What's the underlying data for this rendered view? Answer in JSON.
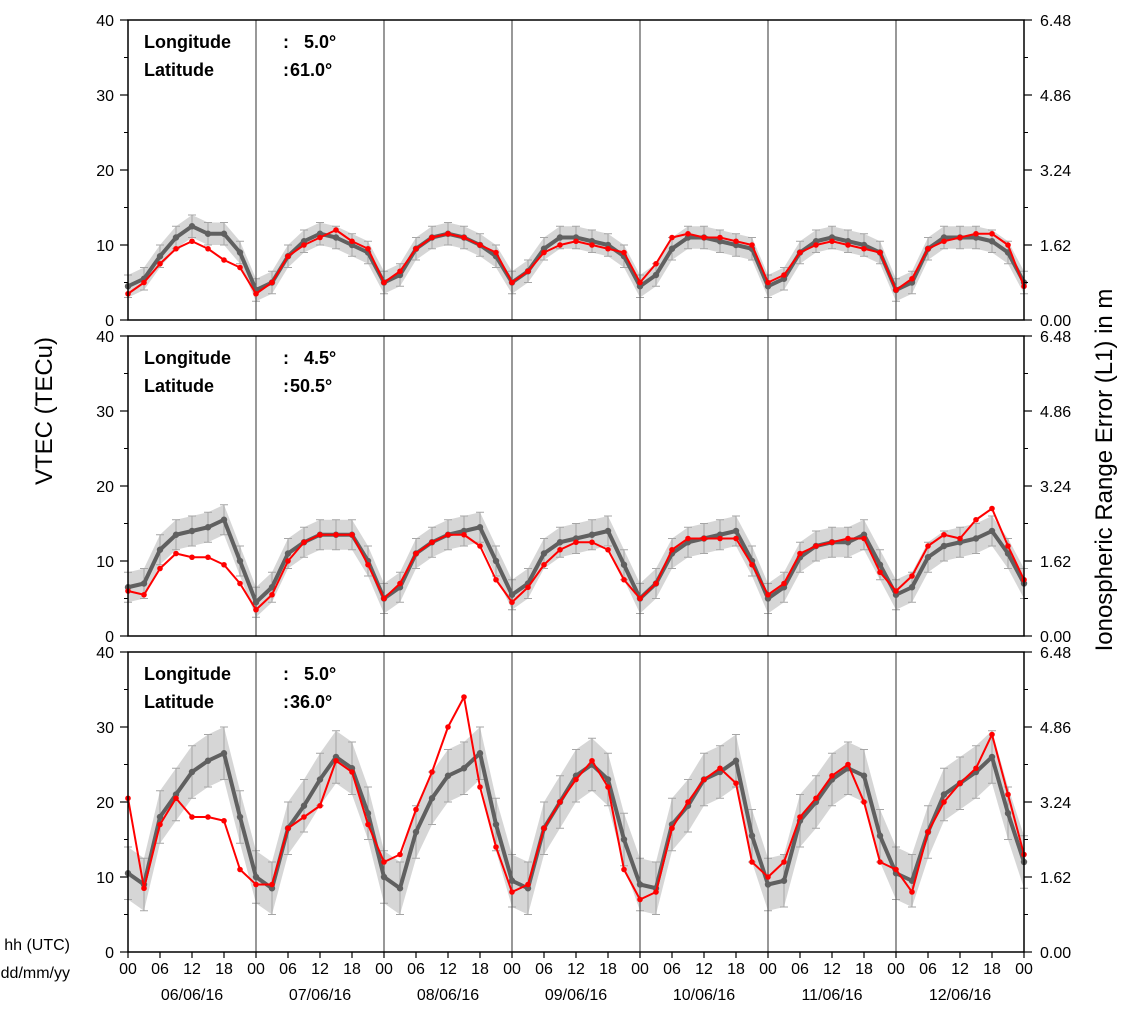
{
  "figure": {
    "ylabel_left": "VTEC (TECu)",
    "ylabel_right": "Ionospheric Range Error (L1) in m",
    "x_row_label_hours": "hh (UTC)",
    "x_row_label_dates": "dd/mm/yy",
    "hour_ticks": [
      "00",
      "06",
      "12",
      "18",
      "00",
      "06",
      "12",
      "18",
      "00",
      "06",
      "12",
      "18",
      "00",
      "06",
      "12",
      "18",
      "00",
      "06",
      "12",
      "18",
      "00",
      "06",
      "12",
      "18",
      "00",
      "06",
      "12",
      "18",
      "00"
    ],
    "date_labels": [
      "06/06/16",
      "07/06/16",
      "08/06/16",
      "09/06/16",
      "10/06/16",
      "11/06/16",
      "12/06/16"
    ]
  },
  "colors": {
    "reference": "#606060",
    "observed": "#ff0000",
    "band": "#cccccc",
    "errorbar": "#a6a6a6",
    "grid": "#555555"
  },
  "chart_data": [
    {
      "type": "line",
      "panel": "top",
      "annotation": {
        "lon_label": "Longitude",
        "lon_value": "5.0°",
        "lat_label": "Latitude",
        "lat_value": "61.0°"
      },
      "x_unit": "hours since 06/06/16 00 UTC",
      "xlim": [
        0,
        168
      ],
      "ylim": [
        0,
        40
      ],
      "y_ticks": [
        0,
        10,
        20,
        30,
        40
      ],
      "y2_ticks": [
        "0.00",
        "1.62",
        "3.24",
        "4.86",
        "6.48"
      ],
      "band_halfwidth": 1.5,
      "series": [
        {
          "x": [
            0,
            3,
            6,
            9,
            12,
            15,
            18,
            21,
            24,
            27,
            30,
            33,
            36,
            39,
            42,
            45,
            48,
            51,
            54,
            57,
            60,
            63,
            66,
            69,
            72,
            75,
            78,
            81,
            84,
            87,
            90,
            93,
            96,
            99,
            102,
            105,
            108,
            111,
            114,
            117,
            120,
            123,
            126,
            129,
            132,
            135,
            138,
            141,
            144,
            147,
            150,
            153,
            156,
            159,
            162,
            165,
            168
          ],
          "y": [
            4.5,
            5.5,
            8.5,
            11,
            12.5,
            11.5,
            11.5,
            9,
            4,
            5,
            8.5,
            10.5,
            11.5,
            11,
            10,
            9,
            5,
            6,
            9.5,
            11,
            11.5,
            11,
            10,
            8.5,
            5,
            6.5,
            9.5,
            11,
            11,
            10.5,
            10,
            8.5,
            4.5,
            6,
            9.5,
            11,
            11,
            10.5,
            10,
            9.5,
            4.5,
            5.5,
            9,
            10.5,
            11,
            10.5,
            10,
            9,
            4,
            5,
            9.5,
            11,
            11,
            11,
            10.5,
            9,
            5
          ]
        },
        {
          "x": [
            0,
            3,
            6,
            9,
            12,
            15,
            18,
            21,
            24,
            27,
            30,
            33,
            36,
            39,
            42,
            45,
            48,
            51,
            54,
            57,
            60,
            63,
            66,
            69,
            72,
            75,
            78,
            81,
            84,
            87,
            90,
            93,
            96,
            99,
            102,
            105,
            108,
            111,
            114,
            117,
            120,
            123,
            126,
            129,
            132,
            135,
            138,
            141,
            144,
            147,
            150,
            153,
            156,
            159,
            162,
            165,
            168
          ],
          "y": [
            3.5,
            5,
            7.5,
            9.5,
            10.5,
            9.5,
            8,
            7,
            3.5,
            5,
            8.5,
            10,
            11,
            12,
            10.5,
            9.5,
            5,
            6.5,
            9.5,
            11,
            11.5,
            11,
            10,
            9,
            5,
            6.5,
            9,
            10,
            10.5,
            10,
            9.5,
            9,
            5,
            7.5,
            11,
            11.5,
            11,
            11,
            10.5,
            10,
            5,
            6,
            9,
            10,
            10.5,
            10,
            9.5,
            9,
            4,
            5.5,
            9.5,
            10.5,
            11,
            11.5,
            11.5,
            10,
            4.5
          ]
        }
      ]
    },
    {
      "type": "line",
      "panel": "middle",
      "annotation": {
        "lon_label": "Longitude",
        "lon_value": "4.5°",
        "lat_label": "Latitude",
        "lat_value": "50.5°"
      },
      "x_unit": "hours since 06/06/16 00 UTC",
      "xlim": [
        0,
        168
      ],
      "ylim": [
        0,
        40
      ],
      "y_ticks": [
        0,
        10,
        20,
        30,
        40
      ],
      "y2_ticks": [
        "0.00",
        "1.62",
        "3.24",
        "4.86",
        "6.48"
      ],
      "band_halfwidth": 2,
      "series": [
        {
          "x": [
            0,
            3,
            6,
            9,
            12,
            15,
            18,
            21,
            24,
            27,
            30,
            33,
            36,
            39,
            42,
            45,
            48,
            51,
            54,
            57,
            60,
            63,
            66,
            69,
            72,
            75,
            78,
            81,
            84,
            87,
            90,
            93,
            96,
            99,
            102,
            105,
            108,
            111,
            114,
            117,
            120,
            123,
            126,
            129,
            132,
            135,
            138,
            141,
            144,
            147,
            150,
            153,
            156,
            159,
            162,
            165,
            168
          ],
          "y": [
            6.5,
            7,
            11.5,
            13.5,
            14,
            14.5,
            15.5,
            10,
            4.5,
            6.5,
            11,
            12.5,
            13.5,
            13.5,
            13.5,
            10,
            5,
            6.5,
            11,
            12.5,
            13.5,
            14,
            14.5,
            10,
            5.5,
            7,
            11,
            12.5,
            13,
            13.5,
            14,
            9.5,
            5,
            7,
            11,
            12.5,
            13,
            13.5,
            14,
            10,
            5,
            6.5,
            10.5,
            12,
            12.5,
            12.5,
            13.5,
            9.5,
            5.5,
            6.5,
            10.5,
            12,
            12.5,
            13,
            14,
            11,
            7
          ]
        },
        {
          "x": [
            0,
            3,
            6,
            9,
            12,
            15,
            18,
            21,
            24,
            27,
            30,
            33,
            36,
            39,
            42,
            45,
            48,
            51,
            54,
            57,
            60,
            63,
            66,
            69,
            72,
            75,
            78,
            81,
            84,
            87,
            90,
            93,
            96,
            99,
            102,
            105,
            108,
            111,
            114,
            117,
            120,
            123,
            126,
            129,
            132,
            135,
            138,
            141,
            144,
            147,
            150,
            153,
            156,
            159,
            162,
            165,
            168
          ],
          "y": [
            6,
            5.5,
            9,
            11,
            10.5,
            10.5,
            9.5,
            7,
            3.5,
            5.5,
            10,
            12.5,
            13.5,
            13.5,
            13.5,
            9.5,
            5,
            7,
            11,
            12.5,
            13.5,
            13.5,
            12,
            7.5,
            4.5,
            6.5,
            9.5,
            11.5,
            12.5,
            12.5,
            11.5,
            7.5,
            5,
            7,
            11.5,
            13,
            13,
            13,
            13,
            9.5,
            5.5,
            7,
            11,
            12,
            12.5,
            13,
            13,
            8.5,
            6,
            8,
            12,
            13.5,
            13,
            15.5,
            17,
            12,
            7.5
          ]
        }
      ]
    },
    {
      "type": "line",
      "panel": "bottom",
      "annotation": {
        "lon_label": "Longitude",
        "lon_value": "5.0°",
        "lat_label": "Latitude",
        "lat_value": "36.0°"
      },
      "x_unit": "hours since 06/06/16 00 UTC",
      "xlim": [
        0,
        168
      ],
      "ylim": [
        0,
        40
      ],
      "y_ticks": [
        0,
        10,
        20,
        30,
        40
      ],
      "y2_ticks": [
        "0.00",
        "1.62",
        "3.24",
        "4.86",
        "6.48"
      ],
      "band_halfwidth": 3.5,
      "series": [
        {
          "x": [
            0,
            3,
            6,
            9,
            12,
            15,
            18,
            21,
            24,
            27,
            30,
            33,
            36,
            39,
            42,
            45,
            48,
            51,
            54,
            57,
            60,
            63,
            66,
            69,
            72,
            75,
            78,
            81,
            84,
            87,
            90,
            93,
            96,
            99,
            102,
            105,
            108,
            111,
            114,
            117,
            120,
            123,
            126,
            129,
            132,
            135,
            138,
            141,
            144,
            147,
            150,
            153,
            156,
            159,
            162,
            165,
            168
          ],
          "y": [
            10.5,
            9,
            18,
            21,
            24,
            25.5,
            26.5,
            18,
            10,
            8.5,
            16.5,
            19.5,
            23,
            26,
            24.5,
            18.5,
            10,
            8.5,
            16,
            20.5,
            23.5,
            24.5,
            26.5,
            17,
            9.5,
            8.5,
            16.5,
            20,
            23.5,
            25,
            23,
            15,
            9,
            8.5,
            17,
            19.5,
            23,
            24,
            25.5,
            15.5,
            9,
            9.5,
            17.5,
            20,
            23,
            24.5,
            23.5,
            15.5,
            10.5,
            9.5,
            16,
            21,
            22.5,
            24,
            26,
            18.5,
            12
          ]
        },
        {
          "x": [
            0,
            3,
            6,
            9,
            12,
            15,
            18,
            21,
            24,
            27,
            30,
            33,
            36,
            39,
            42,
            45,
            48,
            51,
            54,
            57,
            60,
            63,
            66,
            69,
            72,
            75,
            78,
            81,
            84,
            87,
            90,
            93,
            96,
            99,
            102,
            105,
            108,
            111,
            114,
            117,
            120,
            123,
            126,
            129,
            132,
            135,
            138,
            141,
            144,
            147,
            150,
            153,
            156,
            159,
            162,
            165,
            168
          ],
          "y": [
            20.5,
            8.5,
            17,
            20.5,
            18,
            18,
            17.5,
            11,
            9,
            9,
            16.5,
            18,
            19.5,
            25.5,
            24,
            17,
            12,
            13,
            19,
            24,
            30,
            34,
            22,
            14,
            8,
            9,
            16.5,
            20,
            23,
            25.5,
            22,
            11,
            7,
            8,
            16.5,
            20,
            23,
            24.5,
            22.5,
            12,
            10,
            12,
            18,
            20.5,
            23.5,
            25,
            20,
            12,
            11,
            8,
            16,
            20,
            22.5,
            24.5,
            29,
            21,
            13
          ]
        }
      ]
    }
  ]
}
